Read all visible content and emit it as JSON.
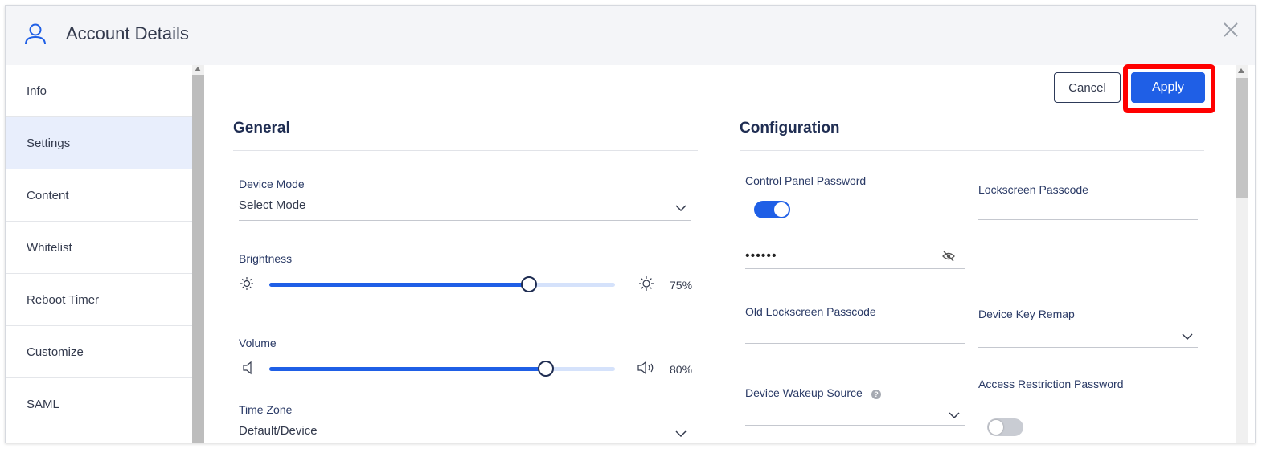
{
  "header": {
    "title": "Account Details"
  },
  "sidebar": {
    "items": [
      {
        "label": "Info"
      },
      {
        "label": "Settings"
      },
      {
        "label": "Content"
      },
      {
        "label": "Whitelist"
      },
      {
        "label": "Reboot Timer"
      },
      {
        "label": "Customize"
      },
      {
        "label": "SAML"
      }
    ],
    "active": "Settings"
  },
  "actions": {
    "cancel_label": "Cancel",
    "apply_label": "Apply"
  },
  "general": {
    "title": "General",
    "device_mode": {
      "label": "Device Mode",
      "value": "Select Mode"
    },
    "brightness": {
      "label": "Brightness",
      "value": 75,
      "value_text": "75%"
    },
    "volume": {
      "label": "Volume",
      "value": 80,
      "value_text": "80%"
    },
    "time_zone": {
      "label": "Time Zone",
      "value": "Default/Device"
    }
  },
  "configuration": {
    "title": "Configuration",
    "control_panel_password": {
      "label": "Control Panel Password",
      "enabled": true,
      "value": "••••••"
    },
    "lockscreen_passcode": {
      "label": "Lockscreen Passcode",
      "value": ""
    },
    "old_lockscreen_passcode": {
      "label": "Old Lockscreen Passcode",
      "value": ""
    },
    "device_key_remap": {
      "label": "Device Key Remap",
      "value": ""
    },
    "device_wakeup_source": {
      "label": "Device Wakeup Source",
      "value": ""
    },
    "access_restriction_password": {
      "label": "Access Restriction Password",
      "enabled": false
    }
  },
  "colors": {
    "accent": "#1f5fe6",
    "highlight": "#ff0000",
    "heading": "#1f2d52"
  }
}
